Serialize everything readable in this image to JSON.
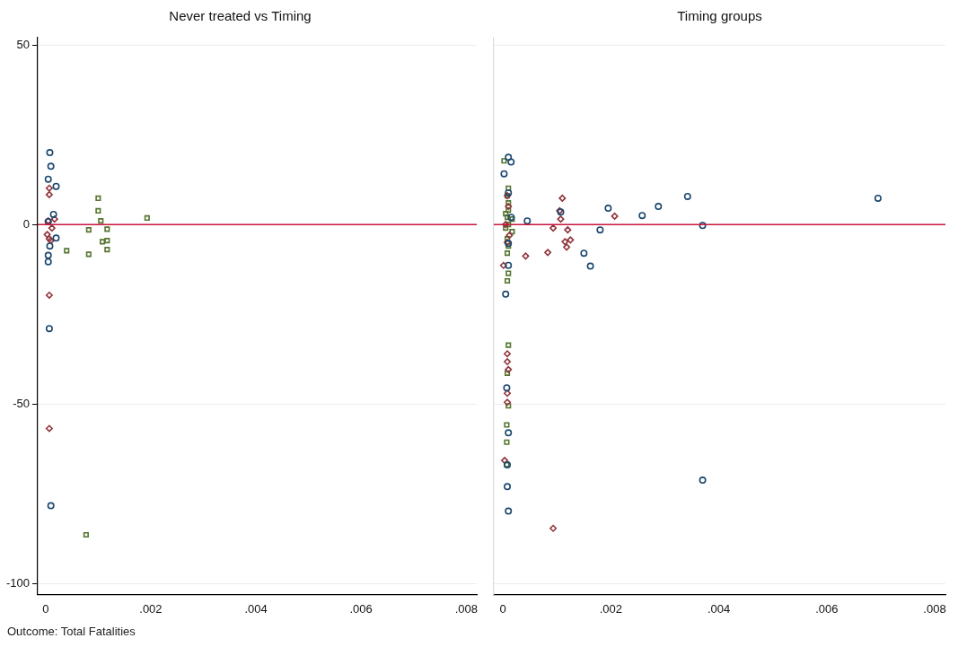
{
  "chart_data": [
    {
      "type": "scatter",
      "title": "Never treated vs Timing",
      "xlim": [
        -0.00015,
        0.0082
      ],
      "xticks": [
        {
          "value": 0,
          "label": "0"
        },
        {
          "value": 0.002,
          "label": ".002"
        },
        {
          "value": 0.004,
          "label": ".004"
        },
        {
          "value": 0.006,
          "label": ".006"
        },
        {
          "value": 0.008,
          "label": ".008"
        }
      ],
      "ylim": [
        -103,
        52
      ],
      "yticks": [
        -100,
        -50,
        0,
        50
      ],
      "grid": "y",
      "legend": false,
      "ref_lines": [
        {
          "axis": "y",
          "value": 0,
          "color": "#c8143c"
        }
      ],
      "annotations": [
        "Outcome: Total Fatalities"
      ],
      "series": [
        {
          "color": "#1a476f",
          "marker": "circle",
          "x": [
            8e-05,
            0.0001,
            5e-05,
            0.0002,
            0.00015,
            5e-05,
            0.0002,
            8e-05,
            5e-05,
            5e-05,
            7e-05,
            0.0001
          ],
          "values": [
            20,
            16.2,
            12.6,
            10.6,
            2.8,
            0.8,
            -3.8,
            -6,
            -8.6,
            -10.4,
            -29,
            -78.3
          ]
        },
        {
          "color": "#90353b",
          "marker": "diamond",
          "x": [
            7e-05,
            7e-05,
            5e-05,
            0.00017,
            0.00012,
            3e-05,
            7e-05,
            0.0001,
            7e-05,
            7e-05
          ],
          "values": [
            10.1,
            8.3,
            1,
            1.5,
            -1,
            -2.8,
            -4,
            -4.5,
            -19.7,
            -56.8
          ]
        },
        {
          "color": "#55752f",
          "marker": "square",
          "x": [
            0.001,
            0.001,
            0.00105,
            0.00193,
            0.00082,
            0.00117,
            0.00108,
            0.00117,
            0.0004,
            0.00117,
            0.00082,
            0.00077
          ],
          "values": [
            7.3,
            3.8,
            1,
            1.8,
            -1.5,
            -1.3,
            -4.8,
            -4.5,
            -7.3,
            -7,
            -8.3,
            -86.4
          ]
        }
      ]
    },
    {
      "type": "scatter",
      "title": "Timing groups",
      "xlim": [
        -0.00017,
        0.0082
      ],
      "xticks": [
        {
          "value": 0,
          "label": "0"
        },
        {
          "value": 0.002,
          "label": ".002"
        },
        {
          "value": 0.004,
          "label": ".004"
        },
        {
          "value": 0.006,
          "label": ".006"
        },
        {
          "value": 0.008,
          "label": ".008"
        }
      ],
      "ylim": [
        -103,
        52
      ],
      "yticks": [
        -100,
        -50,
        0,
        50
      ],
      "grid": "y",
      "legend": false,
      "tick_labels": "x",
      "ref_lines": [
        {
          "axis": "y",
          "value": 0,
          "color": "#c8143c"
        }
      ],
      "series": [
        {
          "color": "#1a476f",
          "marker": "circle",
          "x": [
            0.0001,
            0.00015,
            2e-05,
            0.0001,
            0.00015,
            0.0001,
            0.0001,
            5e-05,
            0.00045,
            0.00195,
            0.0018,
            0.0015,
            0.00162,
            0.00258,
            0.00288,
            0.00342,
            0.0037,
            0.00695,
            0.00107,
            7e-05,
            0.0001,
            8e-05,
            8e-05,
            0.0001,
            0.0037
          ],
          "values": [
            18.7,
            17.4,
            14.1,
            8.8,
            2,
            -5.3,
            -11.4,
            -19.4,
            1,
            4.5,
            -1.5,
            -8,
            -11.6,
            2.5,
            5,
            7.8,
            -0.3,
            7.3,
            3.5,
            -45.5,
            -58,
            -66.9,
            -73,
            -79.8,
            -71.2
          ]
        },
        {
          "color": "#90353b",
          "marker": "diamond",
          "x": [
            0.0011,
            0.00105,
            0.00107,
            0.00093,
            0.0012,
            0.00115,
            0.00125,
            0.00118,
            0.00083,
            0.00042,
            0.00207,
            1e-05,
            8e-05,
            0.0001,
            5e-05,
            0.00012,
            8e-05,
            8e-05,
            8e-05,
            0.0001,
            8e-05,
            8e-05,
            3e-05,
            0.00093
          ],
          "values": [
            7.3,
            3.8,
            1.5,
            -1,
            -1.5,
            -4.8,
            -4.3,
            -6.3,
            -7.8,
            -8.8,
            2.3,
            -11.4,
            8,
            5,
            0,
            -3,
            -5,
            -36,
            -38.2,
            -40.4,
            -47,
            -49.5,
            -65.7,
            -84.6
          ]
        },
        {
          "color": "#55752f",
          "marker": "square",
          "x": [
            2e-05,
            0.0001,
            8e-05,
            0.0001,
            0.0001,
            8e-05,
            0.0001,
            8e-05,
            0.0001,
            0.00017,
            0.00017,
            8e-05,
            0.0001,
            8e-05,
            0.0001,
            8e-05,
            0.0001,
            7e-05,
            7e-05,
            7e-05,
            5e-05,
            5e-05
          ],
          "values": [
            17.7,
            10.1,
            8,
            6,
            4,
            2,
            0,
            -4,
            -6,
            1.5,
            -2,
            -8,
            -13.6,
            -15.7,
            -33.6,
            -41.4,
            -50.5,
            -55.8,
            -60.6,
            -66.9,
            -1,
            3
          ]
        }
      ]
    }
  ]
}
